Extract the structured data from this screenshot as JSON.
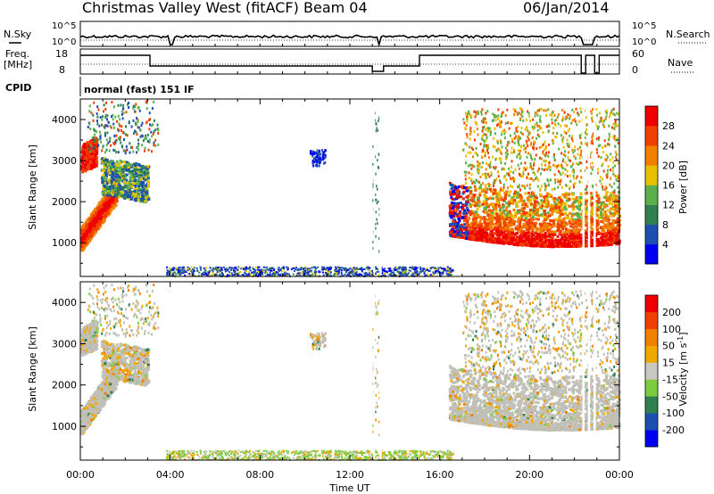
{
  "header": {
    "title": "Christmas Valley West (fitACF)",
    "beam": "Beam 04",
    "date": "06/Jan/2014"
  },
  "sky_panel": {
    "left_label": "N.Sky",
    "right_label": "N.Search",
    "left_ticks": [
      "10^5",
      "10^0"
    ],
    "right_ticks": [
      "10^5",
      "10^0"
    ]
  },
  "freq_panel": {
    "left_label_line1": "Freq.",
    "left_label_line2": "[MHz]",
    "right_label": "Nave",
    "left_ticks": [
      "18",
      "8"
    ],
    "right_ticks": [
      "60",
      "0"
    ]
  },
  "cpid": {
    "label": "CPID",
    "value": "normal (fast) 151 IF"
  },
  "colors": {
    "power_scale": [
      "#0000ee",
      "#1c4fb0",
      "#2f8050",
      "#5ab04a",
      "#e8c000",
      "#f08000",
      "#f04000",
      "#ee0000"
    ],
    "velocity_scale": [
      "#ee0000",
      "#f04000",
      "#f08000",
      "#f0a800",
      "#c8c8c0",
      "#7ccc40",
      "#2f8050",
      "#1c4fb0",
      "#0000ee"
    ],
    "ground_scatter": "#c0c0b8"
  },
  "chart_data": [
    {
      "type": "heatmap",
      "name": "power",
      "ylabel": "Slant Range [km]",
      "xlabel": "",
      "x_ticks": [
        "00:00",
        "04:00",
        "08:00",
        "12:00",
        "16:00",
        "20:00",
        "00:00"
      ],
      "x_range_hours": [
        0,
        24
      ],
      "y_ticks": [
        1000,
        2000,
        3000,
        4000
      ],
      "ylim": [
        180,
        4500
      ],
      "colorbar": {
        "label": "Power [dB]",
        "ticks": [
          4,
          8,
          12,
          16,
          20,
          24,
          28
        ],
        "range": [
          0,
          32
        ]
      }
    },
    {
      "type": "heatmap",
      "name": "velocity",
      "ylabel": "Slant Range [km]",
      "xlabel": "Time UT",
      "x_ticks": [
        "00:00",
        "04:00",
        "08:00",
        "12:00",
        "16:00",
        "20:00",
        "00:00"
      ],
      "x_range_hours": [
        0,
        24
      ],
      "y_ticks": [
        1000,
        2000,
        3000,
        4000
      ],
      "ylim": [
        180,
        4500
      ],
      "colorbar": {
        "label_main": "Velocity [m s",
        "label_sup": "-1",
        "label_end": "]",
        "ticks": [
          200,
          100,
          50,
          15,
          -15,
          -50,
          -100,
          -200
        ]
      }
    }
  ]
}
